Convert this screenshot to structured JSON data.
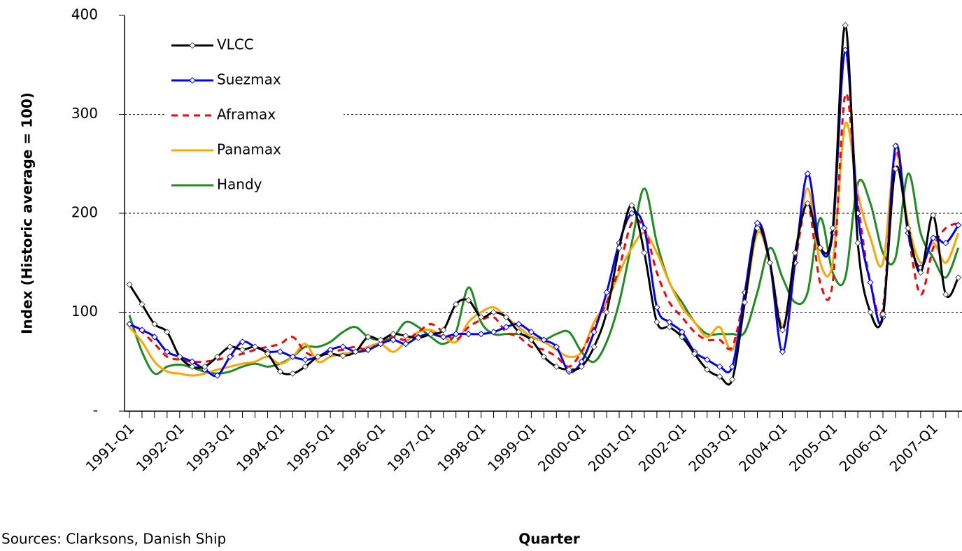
{
  "chart_data": {
    "type": "line",
    "y_label": "Index (Historic average = 100)",
    "x_label": "Quarter",
    "source": "Sources: Clarksons, Danish Ship",
    "categories": [
      "1991-Q1",
      null,
      null,
      null,
      "1992-Q1",
      null,
      null,
      null,
      "1993-Q1",
      null,
      null,
      null,
      "1994-Q1",
      null,
      null,
      null,
      "1995-Q1",
      null,
      null,
      null,
      "1996-Q1",
      null,
      null,
      null,
      "1997-Q1",
      null,
      null,
      null,
      "1998-Q1",
      null,
      null,
      null,
      "1999-Q1",
      null,
      null,
      null,
      "2000-Q1",
      null,
      null,
      null,
      "2001-Q1",
      null,
      null,
      null,
      "2002-Q1",
      null,
      null,
      null,
      "2003-Q1",
      null,
      null,
      null,
      "2004-Q1",
      null,
      null,
      null,
      "2005-Q1",
      null,
      null,
      null,
      "2006-Q1",
      null,
      null,
      null,
      "2007-Q1",
      null,
      null
    ],
    "ylim": [
      0,
      400
    ],
    "yticks": [
      {
        "value": 0,
        "label": "-"
      },
      100,
      200,
      300,
      400
    ],
    "grid": true,
    "legend": "upper left",
    "series": [
      {
        "name": "VLCC",
        "color": "#000000",
        "markers": true,
        "dashed": false,
        "values": [
          128,
          108,
          88,
          80,
          55,
          45,
          45,
          55,
          65,
          62,
          65,
          58,
          40,
          38,
          45,
          55,
          58,
          56,
          60,
          75,
          72,
          78,
          76,
          74,
          78,
          82,
          108,
          112,
          95,
          100,
          95,
          80,
          72,
          55,
          45,
          42,
          45,
          65,
          100,
          165,
          208,
          160,
          90,
          85,
          75,
          58,
          42,
          35,
          32,
          110,
          185,
          150,
          82,
          160,
          210,
          165,
          185,
          390,
          170,
          100,
          98,
          245,
          185,
          140,
          198,
          118,
          135
        ]
      },
      {
        "name": "Suezmax",
        "color": "#0000ff",
        "markers": true,
        "dashed": false,
        "values": [
          88,
          82,
          75,
          60,
          55,
          50,
          42,
          36,
          55,
          70,
          65,
          60,
          60,
          55,
          52,
          55,
          62,
          65,
          60,
          62,
          68,
          72,
          68,
          75,
          78,
          75,
          78,
          78,
          78,
          80,
          85,
          88,
          80,
          72,
          65,
          40,
          50,
          80,
          120,
          170,
          200,
          185,
          105,
          90,
          80,
          60,
          52,
          45,
          45,
          120,
          190,
          150,
          60,
          150,
          240,
          165,
          180,
          365,
          200,
          130,
          95,
          268,
          180,
          145,
          175,
          170,
          188
        ]
      },
      {
        "name": "Aframax",
        "color": "#ff0000",
        "markers": false,
        "dashed": true,
        "values": [
          88,
          80,
          68,
          55,
          52,
          50,
          50,
          52,
          55,
          58,
          62,
          65,
          68,
          75,
          60,
          55,
          60,
          62,
          65,
          62,
          70,
          75,
          72,
          80,
          88,
          80,
          72,
          85,
          92,
          95,
          80,
          75,
          65,
          62,
          55,
          45,
          60,
          85,
          110,
          145,
          190,
          185,
          140,
          110,
          95,
          80,
          72,
          72,
          65,
          120,
          185,
          150,
          85,
          150,
          210,
          130,
          130,
          320,
          210,
          130,
          105,
          262,
          180,
          118,
          165,
          185,
          190
        ]
      },
      {
        "name": "Panamax",
        "color": "#ffa500",
        "markers": false,
        "dashed": false,
        "values": [
          85,
          70,
          50,
          40,
          38,
          36,
          38,
          42,
          45,
          48,
          50,
          55,
          48,
          55,
          68,
          50,
          55,
          58,
          60,
          65,
          68,
          60,
          70,
          80,
          82,
          75,
          70,
          90,
          100,
          105,
          95,
          85,
          75,
          70,
          62,
          55,
          60,
          90,
          110,
          140,
          165,
          180,
          160,
          130,
          105,
          90,
          75,
          85,
          62,
          110,
          180,
          150,
          85,
          150,
          225,
          150,
          150,
          290,
          220,
          175,
          150,
          260,
          190,
          150,
          170,
          150,
          180
        ]
      },
      {
        "name": "Handy",
        "color": "#1e8c1e",
        "markers": false,
        "dashed": false,
        "values": [
          97,
          60,
          38,
          45,
          47,
          44,
          40,
          38,
          40,
          45,
          48,
          45,
          48,
          55,
          65,
          65,
          70,
          80,
          85,
          75,
          72,
          75,
          90,
          85,
          75,
          68,
          80,
          125,
          90,
          78,
          78,
          78,
          75,
          72,
          78,
          80,
          60,
          50,
          70,
          110,
          170,
          225,
          170,
          130,
          110,
          90,
          78,
          78,
          78,
          80,
          120,
          165,
          135,
          110,
          120,
          195,
          140,
          135,
          230,
          210,
          160,
          155,
          240,
          180,
          155,
          135,
          165
        ]
      }
    ]
  }
}
